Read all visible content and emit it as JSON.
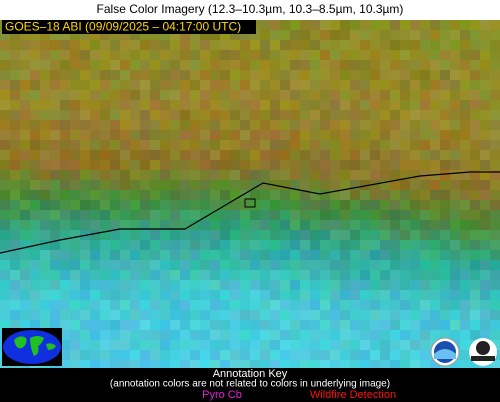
{
  "header": {
    "title": "False Color Imagery (12.3–10.3µm, 10.3–8.5µm, 10.3µm)"
  },
  "image": {
    "label": "GOES–18 ABI (09/09/2025 – 04:17:00 UTC)"
  },
  "legend": {
    "title": "Annotation Key",
    "note": "(annotation colors are not related to colors in underlying image)",
    "items": [
      "Pyro Cb",
      "Wildfire Detection"
    ]
  }
}
